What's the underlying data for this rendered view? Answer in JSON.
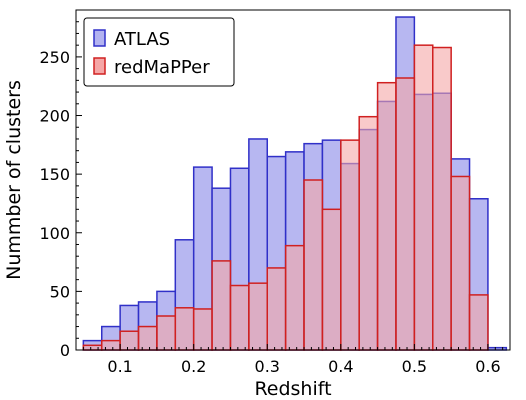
{
  "chart_data": {
    "type": "bar",
    "histogram": true,
    "xlabel": "Redshift",
    "ylabel": "Nummber of clusters",
    "xlim": [
      0.04,
      0.63
    ],
    "ylim": [
      0,
      290
    ],
    "xticks": [
      0.1,
      0.2,
      0.3,
      0.4,
      0.5,
      0.6
    ],
    "yticks": [
      0,
      50,
      100,
      150,
      200,
      250
    ],
    "grid": false,
    "legend_position": "top-left",
    "bin_edges": [
      0.05,
      0.075,
      0.1,
      0.125,
      0.15,
      0.175,
      0.2,
      0.225,
      0.25,
      0.275,
      0.3,
      0.325,
      0.35,
      0.375,
      0.4,
      0.425,
      0.45,
      0.475,
      0.5,
      0.525,
      0.55,
      0.575,
      0.6,
      0.625
    ],
    "series": [
      {
        "name": "ATLAS",
        "fill": "#b3b3f0",
        "stroke": "#3030c8",
        "values": [
          8,
          20,
          38,
          41,
          50,
          94,
          156,
          138,
          155,
          180,
          165,
          169,
          176,
          179,
          159,
          188,
          212,
          284,
          218,
          219,
          163,
          129,
          2
        ]
      },
      {
        "name": "redMaPPer",
        "fill": "#f5a6a6",
        "stroke": "#d02020",
        "values": [
          4,
          8,
          16,
          20,
          29,
          36,
          35,
          76,
          55,
          57,
          70,
          89,
          145,
          120,
          179,
          199,
          228,
          232,
          260,
          258,
          148,
          47,
          0
        ]
      }
    ]
  }
}
